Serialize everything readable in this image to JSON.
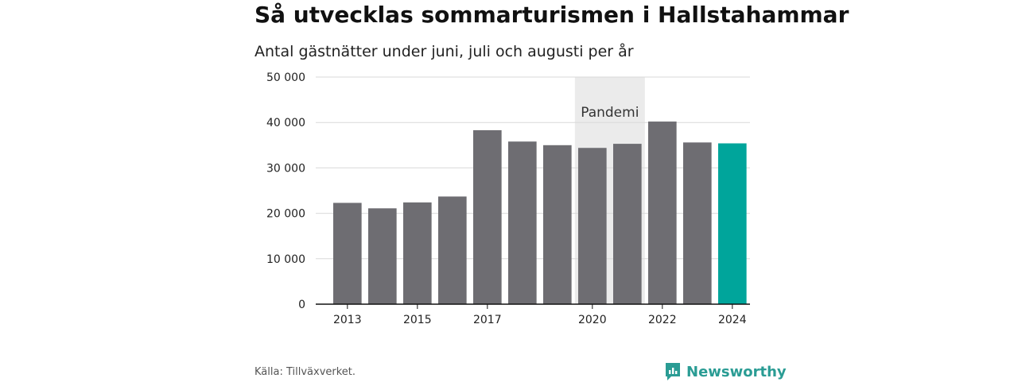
{
  "title": "Så utvecklas sommarturismen i Hallstahammar",
  "subtitle": "Antal gästnätter under juni, juli och augusti per år",
  "source": "Källa: Tillväxverket.",
  "brand": {
    "name": "Newsworthy",
    "icon": "newsworthy-logo-icon",
    "color": "#2a9c94"
  },
  "colors": {
    "bar": "#6e6d72",
    "highlight": "#00a59b",
    "band": "#ebebeb",
    "grid": "#d9d9d9",
    "axis": "#111111"
  },
  "chart_data": {
    "type": "bar",
    "title": "Så utvecklas sommarturismen i Hallstahammar",
    "subtitle": "Antal gästnätter under juni, juli och augusti per år",
    "categories": [
      "2013",
      "2014",
      "2015",
      "2016",
      "2017",
      "2018",
      "2019",
      "2020",
      "2021",
      "2022",
      "2023",
      "2024"
    ],
    "values": [
      22300,
      21100,
      22400,
      23700,
      38300,
      35800,
      35000,
      34400,
      35300,
      40200,
      35600,
      35400
    ],
    "highlight_category": "2024",
    "x_tick_labels": [
      "2013",
      "2015",
      "2017",
      "2020",
      "2022",
      "2024"
    ],
    "y_tick_labels": [
      "0",
      "10 000",
      "20 000",
      "30 000",
      "40 000",
      "50 000"
    ],
    "y_ticks": [
      0,
      10000,
      20000,
      30000,
      40000,
      50000
    ],
    "ylim": [
      0,
      50000
    ],
    "grid": true,
    "annotation": {
      "label": "Pandemi",
      "from": "2020",
      "to": "2021"
    }
  }
}
